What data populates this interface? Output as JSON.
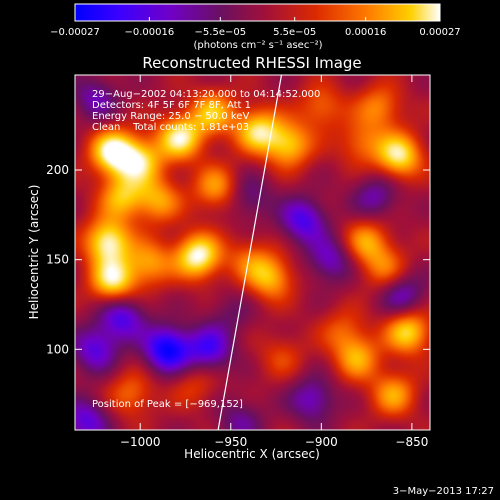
{
  "chart_data": {
    "type": "heatmap",
    "title": "Reconstructed RHESSI Image",
    "xlabel": "Heliocentric X (arcsec)",
    "ylabel": "Heliocentric Y (arcsec)",
    "xlim": [
      -1036,
      -840
    ],
    "ylim": [
      55,
      253
    ],
    "x_ticks": [
      -1000,
      -950,
      -900,
      -850
    ],
    "x_tick_labels": [
      "−1000",
      "−950",
      "−900",
      "−850"
    ],
    "y_ticks": [
      100,
      150,
      200
    ],
    "y_tick_labels": [
      "100",
      "150",
      "200"
    ],
    "colorbar": {
      "min": -0.00027,
      "max": 0.00027,
      "ticks": [
        -0.00027,
        -0.00016,
        -5.5e-05,
        5.5e-05,
        0.00016,
        0.00027
      ],
      "tick_labels": [
        "−0.00027",
        "−0.00016",
        "−5.5e−05",
        "5.5e−05",
        "0.00016",
        "0.00027"
      ],
      "unit_label": "(photons cm⁻² s⁻¹ asec⁻²)",
      "colors": [
        "#0000ff",
        "#3a00ff",
        "#7000c8",
        "#6a1060",
        "#a0103a",
        "#dc2a00",
        "#ff7a00",
        "#ffd000",
        "#ffffff"
      ]
    },
    "annotations": [
      "29−Aug−2002 04:13:20.000 to 04:14:52.000",
      "Detectors: 4F 5F 6F 7F 8F, Att 1",
      "Energy Range: 25.0 − 50.0 keV",
      "Clean    Total counts: 1.81e+03"
    ],
    "peak_label": "Position of Peak = [−969,152]",
    "peak": [
      -969,
      152
    ],
    "limb_line": [
      [
        -957,
        55
      ],
      [
        -922,
        253
      ]
    ],
    "timestamp": "3−May−2013 17:27",
    "blobs": [
      {
        "x": -1015,
        "y": 210,
        "v": 0.00027
      },
      {
        "x": -1000,
        "y": 205,
        "v": 0.0002
      },
      {
        "x": -978,
        "y": 218,
        "v": 0.00024
      },
      {
        "x": -960,
        "y": 232,
        "v": 0.00018
      },
      {
        "x": -935,
        "y": 222,
        "v": 0.00022
      },
      {
        "x": -918,
        "y": 214,
        "v": 0.0002
      },
      {
        "x": -900,
        "y": 235,
        "v": 0.00012
      },
      {
        "x": -878,
        "y": 215,
        "v": 0.00012
      },
      {
        "x": -857,
        "y": 208,
        "v": 0.00024
      },
      {
        "x": -868,
        "y": 235,
        "v": 0.00014
      },
      {
        "x": -1010,
        "y": 185,
        "v": 0.00018
      },
      {
        "x": -990,
        "y": 183,
        "v": 0.00016
      },
      {
        "x": -1018,
        "y": 160,
        "v": 0.00026
      },
      {
        "x": -1015,
        "y": 138,
        "v": 0.00024
      },
      {
        "x": -995,
        "y": 148,
        "v": 0.00016
      },
      {
        "x": -968,
        "y": 152,
        "v": 0.00027
      },
      {
        "x": -958,
        "y": 190,
        "v": 0.00016
      },
      {
        "x": -940,
        "y": 150,
        "v": 0.0001
      },
      {
        "x": -928,
        "y": 140,
        "v": 0.00018
      },
      {
        "x": -875,
        "y": 160,
        "v": 0.00016
      },
      {
        "x": -865,
        "y": 145,
        "v": 0.00012
      },
      {
        "x": -922,
        "y": 96,
        "v": 8e-05
      },
      {
        "x": -888,
        "y": 110,
        "v": 0.0001
      },
      {
        "x": -852,
        "y": 110,
        "v": 0.00022
      },
      {
        "x": -880,
        "y": 95,
        "v": 0.00016
      },
      {
        "x": -860,
        "y": 75,
        "v": 0.00016
      },
      {
        "x": -1005,
        "y": 75,
        "v": 0.00012
      },
      {
        "x": -970,
        "y": 80,
        "v": 8e-05
      },
      {
        "x": -985,
        "y": 100,
        "v": -0.00026
      },
      {
        "x": -1010,
        "y": 118,
        "v": -0.00018
      },
      {
        "x": -1025,
        "y": 100,
        "v": -0.00016
      },
      {
        "x": -962,
        "y": 100,
        "v": -0.00018
      },
      {
        "x": -910,
        "y": 172,
        "v": -0.00018
      },
      {
        "x": -895,
        "y": 150,
        "v": -0.00014
      },
      {
        "x": -855,
        "y": 130,
        "v": -0.00014
      },
      {
        "x": -870,
        "y": 185,
        "v": -0.00012
      },
      {
        "x": -905,
        "y": 72,
        "v": -0.00014
      },
      {
        "x": -940,
        "y": 185,
        "v": -0.0001
      },
      {
        "x": -1025,
        "y": 240,
        "v": -0.00012
      },
      {
        "x": -1030,
        "y": 60,
        "v": -0.00016
      },
      {
        "x": -945,
        "y": 60,
        "v": -0.0001
      },
      {
        "x": -950,
        "y": 120,
        "v": -6e-05
      }
    ]
  }
}
